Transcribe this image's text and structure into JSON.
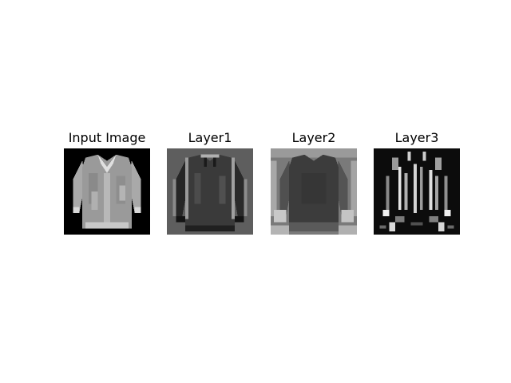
{
  "panels": [
    {
      "title": "Input Image",
      "variant": "input"
    },
    {
      "title": "Layer1",
      "variant": "layer1"
    },
    {
      "title": "Layer2",
      "variant": "layer2"
    },
    {
      "title": "Layer3",
      "variant": "layer3"
    }
  ],
  "colors": {
    "background": "#ffffff",
    "title_text": "#000000"
  }
}
